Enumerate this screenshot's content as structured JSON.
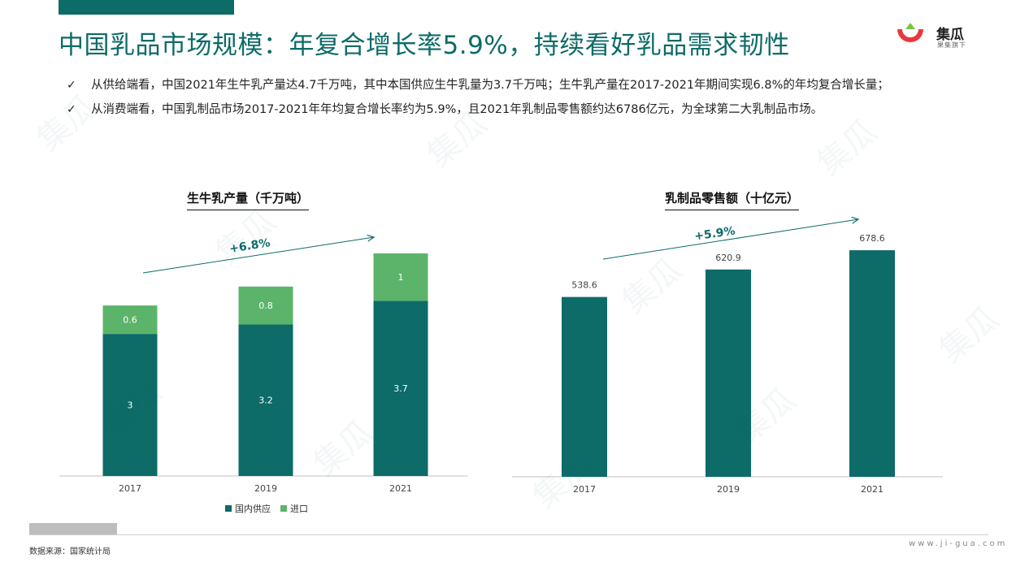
{
  "page": {
    "title": "中国乳品市场规模：年复合增长率5.9%，持续看好乳品需求韧性",
    "bullets": [
      "从供给端看，中国2021年生牛乳产量达4.7千万吨，其中本国供应生牛乳量为3.7千万吨；生牛乳产量在2017-2021年期间实现6.8%的年均复合增长量；",
      "从消费端看，中国乳制品市场2017-2021年年均复合增长率约为5.9%，且2021年乳制品零售额约达6786亿元，为全球第二大乳制品市场。"
    ],
    "check_glyph": "✓",
    "source": "数据来源：国家统计局",
    "website": "www.ji-gua.com",
    "watermark_text": "集瓜",
    "logo": {
      "name": "集瓜",
      "tagline": "果集旗下"
    },
    "colors": {
      "accent": "#0d6b68",
      "import": "#5cb46a",
      "logo_red": "#e8383d",
      "logo_green": "#7dc242"
    }
  },
  "chart_data": [
    {
      "type": "bar",
      "stacked": true,
      "title": "生牛乳产量（千万吨）",
      "categories": [
        "2017",
        "2019",
        "2021"
      ],
      "series": [
        {
          "name": "国内供应",
          "values": [
            3,
            3.2,
            3.7
          ],
          "labels": [
            "3",
            "3.2",
            "3.7"
          ],
          "color": "#0d6b68"
        },
        {
          "name": "进口",
          "values": [
            0.6,
            0.8,
            1
          ],
          "labels": [
            "0.6",
            "0.8",
            "1"
          ],
          "color": "#5cb46a"
        }
      ],
      "ylim": [
        0,
        4.7
      ],
      "growth_annotation": "+6.8%",
      "legend": "bottom",
      "grid": false
    },
    {
      "type": "bar",
      "title": "乳制品零售额（十亿元）",
      "categories": [
        "2017",
        "2019",
        "2021"
      ],
      "values": [
        538.6,
        620.9,
        678.6
      ],
      "labels": [
        "538.6",
        "620.9",
        "678.6"
      ],
      "color": "#0d6b68",
      "ylim": [
        0,
        700
      ],
      "growth_annotation": "+5.9%",
      "grid": false
    }
  ]
}
